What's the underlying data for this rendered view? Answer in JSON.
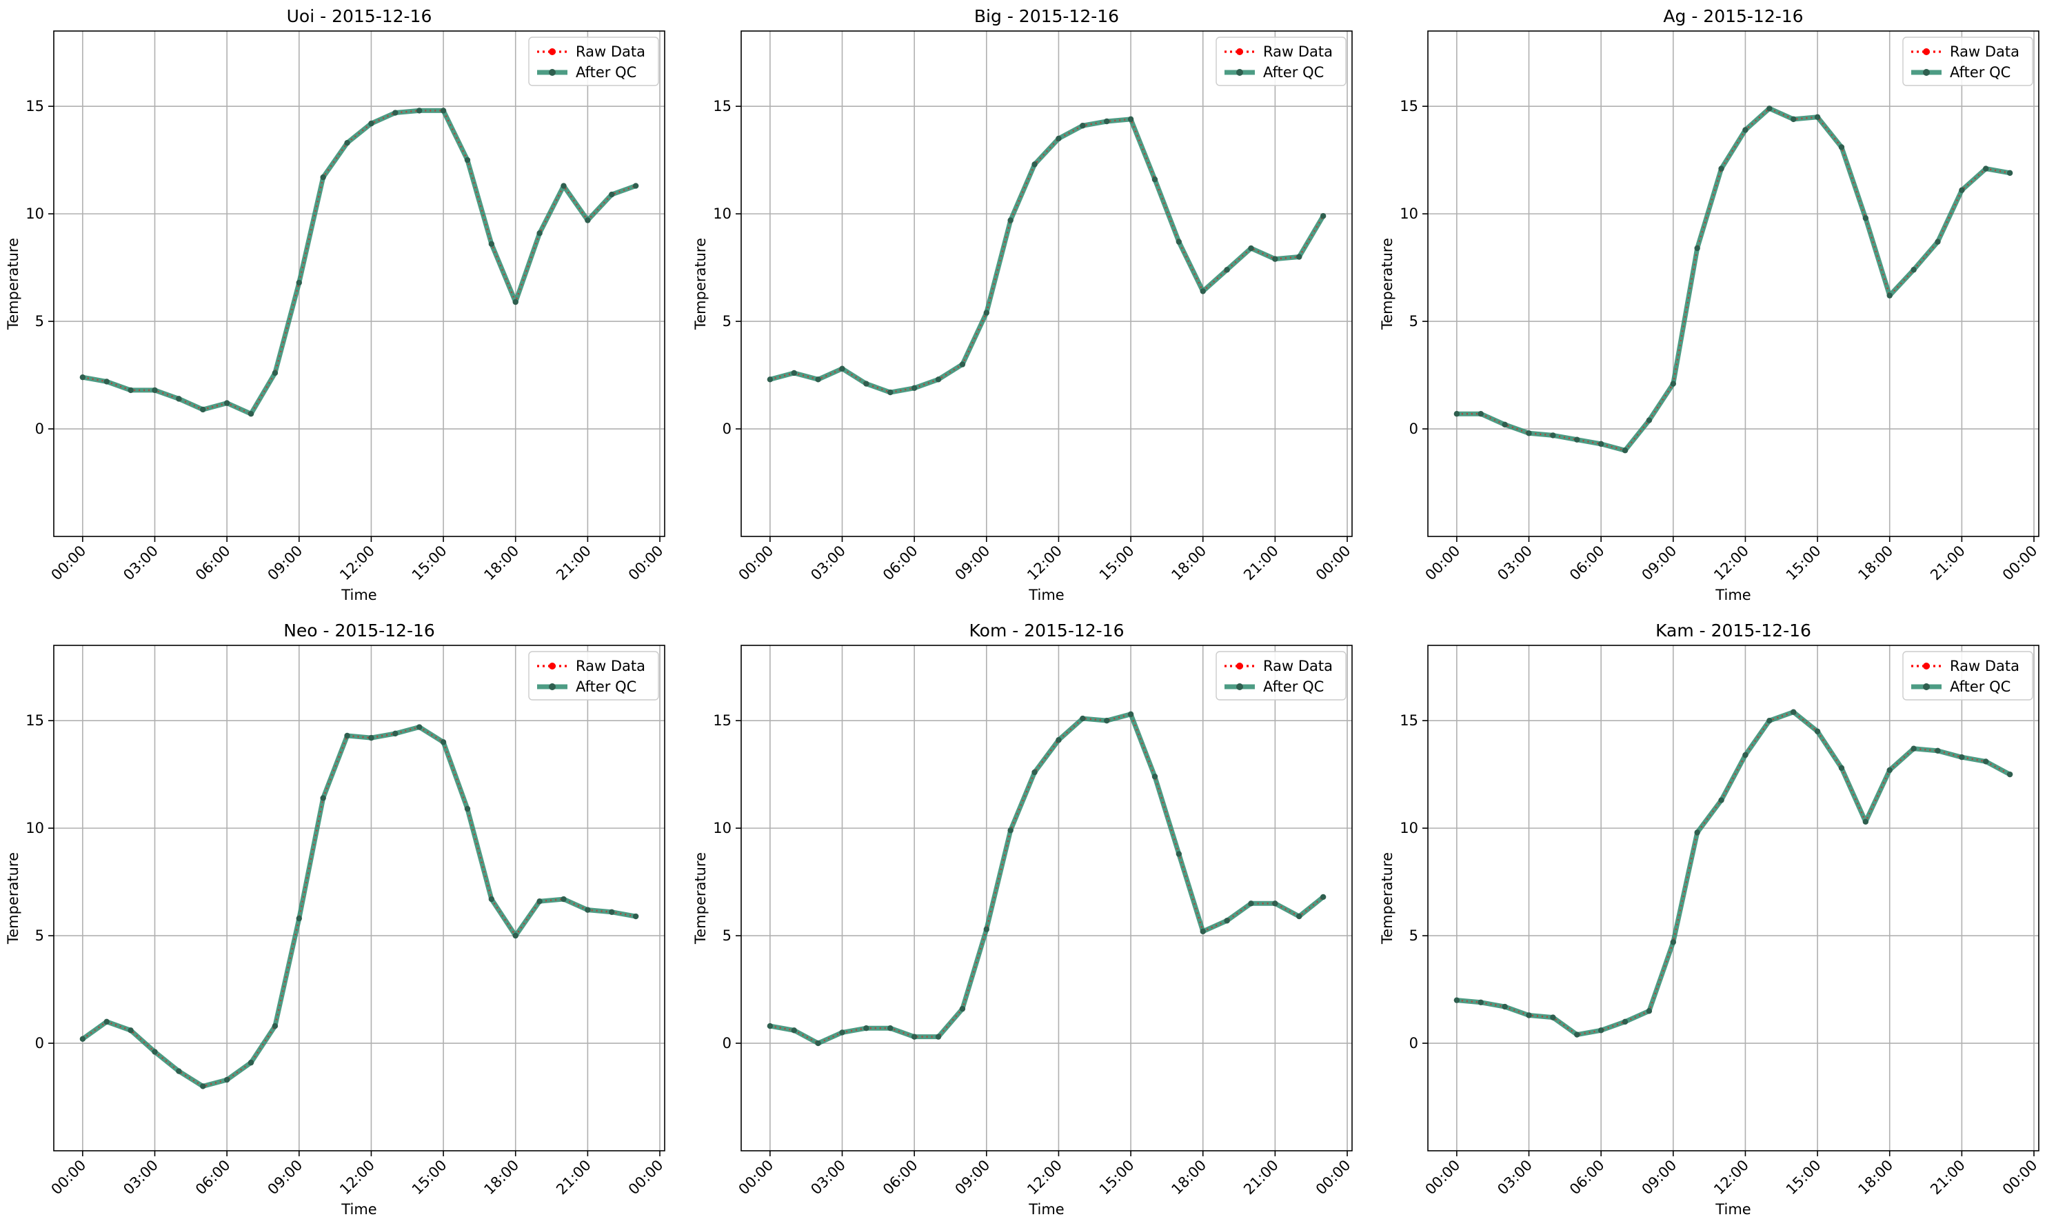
{
  "figure": {
    "background": "#ffffff"
  },
  "style": {
    "raw_color": "#ff0000",
    "qc_color": "#2e8b6e",
    "marker_color": "#2f5f4f",
    "grid_color": "#b0b0b0"
  },
  "chart_data": [
    {
      "type": "line",
      "title": "Uoi - 2015-12-16",
      "xlabel": "Time",
      "ylabel": "Temperature",
      "x_ticks": [
        "00:00",
        "03:00",
        "06:00",
        "09:00",
        "12:00",
        "15:00",
        "18:00",
        "21:00",
        "00:00"
      ],
      "y_ticks": [
        0,
        5,
        10,
        15
      ],
      "ylim": [
        -5,
        18.5
      ],
      "xlim_hours": [
        -1.2,
        24.2
      ],
      "grid": true,
      "legend": {
        "position": "top-right",
        "entries": [
          "Raw Data",
          "After QC"
        ]
      },
      "series": [
        {
          "name": "Raw Data",
          "values": [
            2.4,
            2.2,
            1.8,
            1.8,
            1.4,
            0.9,
            1.2,
            0.7,
            2.6,
            6.8,
            11.7,
            13.3,
            14.2,
            14.7,
            14.8,
            14.8,
            12.5,
            8.6,
            5.9,
            9.1,
            11.3,
            9.7,
            10.9,
            11.3
          ]
        },
        {
          "name": "After QC",
          "values": [
            2.4,
            2.2,
            1.8,
            1.8,
            1.4,
            0.9,
            1.2,
            0.7,
            2.6,
            6.8,
            11.7,
            13.3,
            14.2,
            14.7,
            14.8,
            14.8,
            12.5,
            8.6,
            5.9,
            9.1,
            11.3,
            9.7,
            10.9,
            11.3
          ]
        }
      ]
    },
    {
      "type": "line",
      "title": "Big - 2015-12-16",
      "xlabel": "Time",
      "ylabel": "Temperature",
      "x_ticks": [
        "00:00",
        "03:00",
        "06:00",
        "09:00",
        "12:00",
        "15:00",
        "18:00",
        "21:00",
        "00:00"
      ],
      "y_ticks": [
        0,
        5,
        10,
        15
      ],
      "ylim": [
        -5,
        18.5
      ],
      "xlim_hours": [
        -1.2,
        24.2
      ],
      "grid": true,
      "legend": {
        "position": "top-right",
        "entries": [
          "Raw Data",
          "After QC"
        ]
      },
      "series": [
        {
          "name": "Raw Data",
          "values": [
            2.3,
            2.6,
            2.3,
            2.8,
            2.1,
            1.7,
            1.9,
            2.3,
            3.0,
            5.4,
            9.7,
            12.3,
            13.5,
            14.1,
            14.3,
            14.4,
            11.6,
            8.7,
            6.4,
            7.4,
            8.4,
            7.9,
            8.0,
            9.9
          ]
        },
        {
          "name": "After QC",
          "values": [
            2.3,
            2.6,
            2.3,
            2.8,
            2.1,
            1.7,
            1.9,
            2.3,
            3.0,
            5.4,
            9.7,
            12.3,
            13.5,
            14.1,
            14.3,
            14.4,
            11.6,
            8.7,
            6.4,
            7.4,
            8.4,
            7.9,
            8.0,
            9.9
          ]
        }
      ]
    },
    {
      "type": "line",
      "title": "Ag - 2015-12-16",
      "xlabel": "Time",
      "ylabel": "Temperature",
      "x_ticks": [
        "00:00",
        "03:00",
        "06:00",
        "09:00",
        "12:00",
        "15:00",
        "18:00",
        "21:00",
        "00:00"
      ],
      "y_ticks": [
        0,
        5,
        10,
        15
      ],
      "ylim": [
        -5,
        18.5
      ],
      "xlim_hours": [
        -1.2,
        24.2
      ],
      "grid": true,
      "legend": {
        "position": "top-right",
        "entries": [
          "Raw Data",
          "After QC"
        ]
      },
      "series": [
        {
          "name": "Raw Data",
          "values": [
            0.7,
            0.7,
            0.2,
            -0.2,
            -0.3,
            -0.5,
            -0.7,
            -1.0,
            0.4,
            2.1,
            8.4,
            12.1,
            13.9,
            14.9,
            14.4,
            14.5,
            13.1,
            9.8,
            6.2,
            7.4,
            8.7,
            11.1,
            12.1,
            11.9
          ]
        },
        {
          "name": "After QC",
          "values": [
            0.7,
            0.7,
            0.2,
            -0.2,
            -0.3,
            -0.5,
            -0.7,
            -1.0,
            0.4,
            2.1,
            8.4,
            12.1,
            13.9,
            14.9,
            14.4,
            14.5,
            13.1,
            9.8,
            6.2,
            7.4,
            8.7,
            11.1,
            12.1,
            11.9
          ]
        }
      ]
    },
    {
      "type": "line",
      "title": "Neo - 2015-12-16",
      "xlabel": "Time",
      "ylabel": "Temperature",
      "x_ticks": [
        "00:00",
        "03:00",
        "06:00",
        "09:00",
        "12:00",
        "15:00",
        "18:00",
        "21:00",
        "00:00"
      ],
      "y_ticks": [
        0,
        5,
        10,
        15
      ],
      "ylim": [
        -5,
        18.5
      ],
      "xlim_hours": [
        -1.2,
        24.2
      ],
      "grid": true,
      "legend": {
        "position": "top-right",
        "entries": [
          "Raw Data",
          "After QC"
        ]
      },
      "series": [
        {
          "name": "Raw Data",
          "values": [
            0.2,
            1.0,
            0.6,
            -0.4,
            -1.3,
            -2.0,
            -1.7,
            -0.9,
            0.8,
            5.8,
            11.4,
            14.3,
            14.2,
            14.4,
            14.7,
            14.0,
            10.9,
            6.7,
            5.0,
            6.6,
            6.7,
            6.2,
            6.1,
            5.9
          ]
        },
        {
          "name": "After QC",
          "values": [
            0.2,
            1.0,
            0.6,
            -0.4,
            -1.3,
            -2.0,
            -1.7,
            -0.9,
            0.8,
            5.8,
            11.4,
            14.3,
            14.2,
            14.4,
            14.7,
            14.0,
            10.9,
            6.7,
            5.0,
            6.6,
            6.7,
            6.2,
            6.1,
            5.9
          ]
        }
      ]
    },
    {
      "type": "line",
      "title": "Kom - 2015-12-16",
      "xlabel": "Time",
      "ylabel": "Temperature",
      "x_ticks": [
        "00:00",
        "03:00",
        "06:00",
        "09:00",
        "12:00",
        "15:00",
        "18:00",
        "21:00",
        "00:00"
      ],
      "y_ticks": [
        0,
        5,
        10,
        15
      ],
      "ylim": [
        -5,
        18.5
      ],
      "xlim_hours": [
        -1.2,
        24.2
      ],
      "grid": true,
      "legend": {
        "position": "top-right",
        "entries": [
          "Raw Data",
          "After QC"
        ]
      },
      "series": [
        {
          "name": "Raw Data",
          "values": [
            0.8,
            0.6,
            0.0,
            0.5,
            0.7,
            0.7,
            0.3,
            0.3,
            1.6,
            5.3,
            9.9,
            12.6,
            14.1,
            15.1,
            15.0,
            15.3,
            12.4,
            8.8,
            5.2,
            5.7,
            6.5,
            6.5,
            5.9,
            6.8
          ]
        },
        {
          "name": "After QC",
          "values": [
            0.8,
            0.6,
            0.0,
            0.5,
            0.7,
            0.7,
            0.3,
            0.3,
            1.6,
            5.3,
            9.9,
            12.6,
            14.1,
            15.1,
            15.0,
            15.3,
            12.4,
            8.8,
            5.2,
            5.7,
            6.5,
            6.5,
            5.9,
            6.8
          ]
        }
      ]
    },
    {
      "type": "line",
      "title": "Kam - 2015-12-16",
      "xlabel": "Time",
      "ylabel": "Temperature",
      "x_ticks": [
        "00:00",
        "03:00",
        "06:00",
        "09:00",
        "12:00",
        "15:00",
        "18:00",
        "21:00",
        "00:00"
      ],
      "y_ticks": [
        0,
        5,
        10,
        15
      ],
      "ylim": [
        -5,
        18.5
      ],
      "xlim_hours": [
        -1.2,
        24.2
      ],
      "grid": true,
      "legend": {
        "position": "top-right",
        "entries": [
          "Raw Data",
          "After QC"
        ]
      },
      "series": [
        {
          "name": "Raw Data",
          "values": [
            2.0,
            1.9,
            1.7,
            1.3,
            1.2,
            0.4,
            0.6,
            1.0,
            1.5,
            4.7,
            9.8,
            11.3,
            13.4,
            15.0,
            15.4,
            14.5,
            12.8,
            10.3,
            12.7,
            13.7,
            13.6,
            13.3,
            13.1,
            12.5
          ]
        },
        {
          "name": "After QC",
          "values": [
            2.0,
            1.9,
            1.7,
            1.3,
            1.2,
            0.4,
            0.6,
            1.0,
            1.5,
            4.7,
            9.8,
            11.3,
            13.4,
            15.0,
            15.4,
            14.5,
            12.8,
            10.3,
            12.7,
            13.7,
            13.6,
            13.3,
            13.1,
            12.5
          ]
        }
      ]
    }
  ]
}
